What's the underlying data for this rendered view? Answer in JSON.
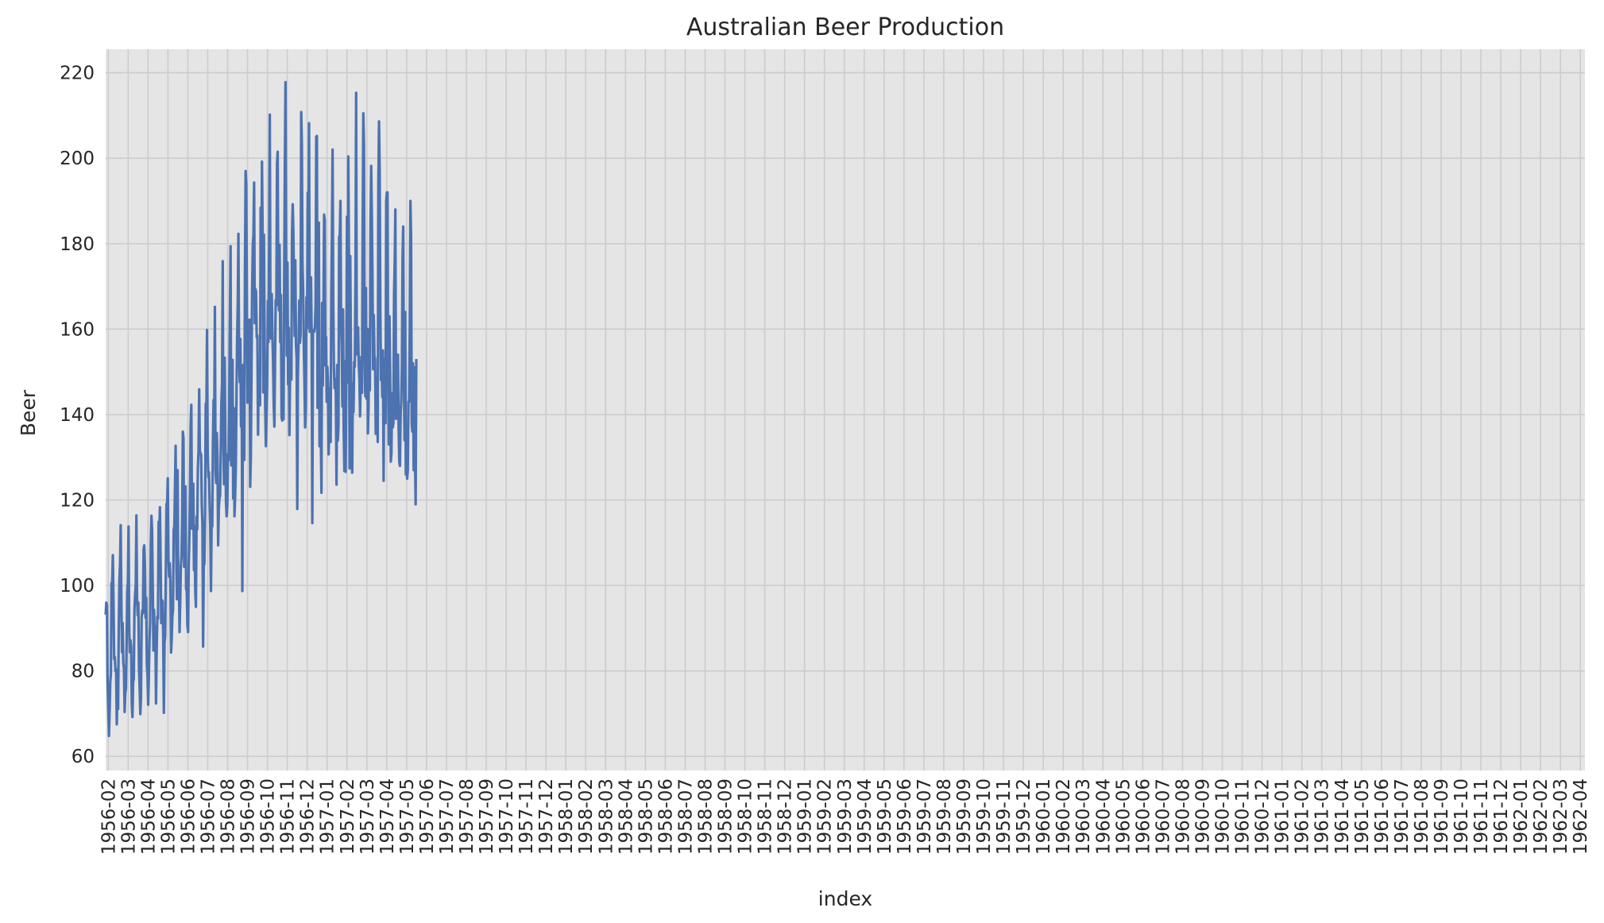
{
  "chart_data": {
    "type": "line",
    "title": "Australian Beer Production",
    "xlabel": "index",
    "ylabel": "Beer",
    "grid": true,
    "legend": "none",
    "colors": {
      "background": "#e5e5e5",
      "grid": "#cccccc",
      "series": "#4c72b0",
      "text": "#262626"
    },
    "ylim": [
      56.7,
      225.5
    ],
    "yticks": [
      60,
      80,
      100,
      120,
      140,
      160,
      180,
      200,
      220
    ],
    "xlim": [
      "1956-01-28",
      "1962-04-08"
    ],
    "xticks": [
      "1956-02",
      "1956-03",
      "1956-04",
      "1956-05",
      "1956-06",
      "1956-07",
      "1956-08",
      "1956-09",
      "1956-10",
      "1956-11",
      "1956-12",
      "1957-01",
      "1957-02",
      "1957-03",
      "1957-04",
      "1957-05",
      "1957-06",
      "1957-07",
      "1957-08",
      "1957-09",
      "1957-10",
      "1957-11",
      "1957-12",
      "1958-01",
      "1958-02",
      "1958-03",
      "1958-04",
      "1958-05",
      "1958-06",
      "1958-07",
      "1958-08",
      "1958-09",
      "1958-10",
      "1958-11",
      "1958-12",
      "1959-01",
      "1959-02",
      "1959-03",
      "1959-04",
      "1959-05",
      "1959-06",
      "1959-07",
      "1959-08",
      "1959-09",
      "1959-10",
      "1959-11",
      "1959-12",
      "1960-01",
      "1960-02",
      "1960-03",
      "1960-04",
      "1960-05",
      "1960-06",
      "1960-07",
      "1960-08",
      "1960-09",
      "1960-10",
      "1960-11",
      "1960-12",
      "1961-01",
      "1961-02",
      "1961-03",
      "1961-04",
      "1961-05",
      "1961-06",
      "1961-07",
      "1961-08",
      "1961-09",
      "1961-10",
      "1961-11",
      "1961-12",
      "1962-01",
      "1962-02",
      "1962-03",
      "1962-04"
    ],
    "x_start": "1956-01-28",
    "series": [
      {
        "values": [
          93.2,
          96.0,
          95.2,
          77.1,
          70.9,
          64.8,
          70.1,
          77.3,
          79.5,
          100.6,
          100.7,
          107.1,
          95.9,
          82.8,
          83.3,
          80.0,
          80.4,
          67.5,
          75.7,
          71.1,
          89.3,
          101.1,
          105.2,
          114.1,
          96.3,
          84.4,
          91.2,
          81.9,
          80.5,
          70.4,
          74.8,
          75.9,
          86.3,
          98.7,
          100.9,
          113.8,
          89.8,
          84.4,
          87.2,
          85.6,
          72.0,
          69.2,
          77.5,
          78.1,
          94.3,
          97.7,
          100.2,
          116.4,
          97.1,
          93.0,
          96.0,
          80.5,
          76.1,
          69.9,
          73.6,
          92.6,
          94.2,
          93.5,
          108.5,
          109.4,
          105.1,
          92.5,
          97.1,
          81.4,
          79.1,
          72.1,
          78.7,
          87.1,
          91.4,
          109.9,
          116.3,
          113.0,
          100.0,
          84.8,
          94.3,
          87.1,
          90.3,
          72.4,
          84.9,
          92.7,
          92.2,
          114.9,
          112.5,
          118.3,
          106.0,
          91.2,
          96.6,
          96.3,
          88.2,
          70.2,
          86.5,
          88.2,
          102.8,
          119.1,
          119.2,
          125.1,
          106.1,
          102.1,
          105.2,
          101.0,
          84.3,
          87.5,
          92.7,
          94.4,
          113.0,
          113.9,
          122.9,
          132.7,
          106.9,
          96.8,
          127.0,
          98.6,
          100.9,
          89.1,
          96.0,
          104.6,
          106.9,
          115.6,
          136.0,
          134.5,
          104.4,
          106.2,
          123.2,
          99.1,
          98.8,
          90.7,
          89.1,
          104.6,
          111.4,
          121.4,
          138.0,
          142.3,
          113.3,
          118.3,
          123.8,
          103.6,
          113.9,
          98.6,
          95.0,
          116.1,
          113.1,
          127.5,
          131.4,
          145.9,
          131.5,
          131.0,
          130.5,
          118.9,
          114.3,
          85.7,
          104.6,
          105.1,
          117.3,
          142.5,
          140.0,
          159.8,
          131.2,
          125.4,
          126.5,
          119.4,
          113.5,
          98.7,
          114.5,
          113.8,
          133.1,
          143.4,
          137.3,
          165.2,
          126.9,
          124.0,
          135.7,
          130.0,
          109.4,
          117.8,
          120.3,
          121.0,
          132.3,
          142.9,
          147.4,
          175.9,
          132.6,
          123.7,
          153.3,
          134.0,
          119.6,
          116.2,
          118.6,
          130.7,
          129.3,
          144.4,
          163.2,
          179.4,
          128.1,
          138.4,
          152.8,
          120.4,
          141.5,
          116.2,
          121.1,
          127.5,
          143.4,
          157.6,
          166.1,
          182.3,
          153.1,
          147.6,
          157.7,
          137.2,
          151.5,
          98.7,
          145.8,
          151.7,
          129.4,
          174.1,
          197.0,
          193.9,
          164.1,
          142.8,
          157.9,
          159.2,
          162.2,
          123.1,
          130.0,
          150.1,
          169.4,
          179.7,
          182.1,
          194.3,
          161.4,
          169.4,
          168.8,
          158.1,
          158.5,
          135.3,
          149.3,
          143.4,
          142.2,
          188.4,
          166.2,
          199.2,
          182.7,
          145.2,
          182.1,
          158.7,
          141.6,
          132.6,
          139.6,
          147.0,
          166.6,
          157.0,
          180.4,
          210.2,
          159.8,
          157.8,
          168.2,
          158.4,
          152.0,
          142.2,
          137.2,
          152.6,
          166.8,
          165.6,
          198.6,
          201.5,
          170.7,
          164.4,
          179.7,
          157.0,
          168.0,
          139.3,
          138.6,
          153.4,
          138.9,
          172.1,
          198.4,
          217.8,
          173.7,
          153.8,
          175.6,
          147.1,
          160.3,
          135.2,
          148.8,
          151.0,
          148.2,
          182.2,
          189.2,
          183.1,
          170.0,
          158.4,
          176.1,
          156.2,
          153.2,
          117.9,
          149.8,
          156.6,
          166.7,
          156.8,
          158.6,
          210.8,
          203.6,
          175.2,
          168.7,
          155.9,
          147.3,
          137.0,
          141.1,
          167.4,
          160.2,
          191.9,
          174.4,
          208.2,
          159.4,
          161.1,
          172.1,
          158.4,
          114.6,
          159.6,
          159.7,
          159.4,
          160.7,
          165.5,
          205.0,
          205.2,
          141.6,
          148.1,
          184.9,
          132.6,
          137.3,
          135.5,
          121.7,
          166.1,
          146.8,
          162.8,
          186.8,
          185.5,
          151.5,
          158.1,
          143.0,
          151.2,
          147.6,
          130.7,
          137.5,
          146.1,
          133.6,
          167.9,
          181.9,
          202.0,
          166.5,
          151.3,
          146.2,
          148.3,
          144.7,
          123.6,
          151.6,
          133.9,
          137.4,
          181.6,
          182.0,
          190.0,
          161.2,
          155.5,
          141.9,
          164.6,
          136.2,
          126.8,
          152.5,
          126.6,
          150.1,
          186.3,
          147.5,
          200.4,
          177.2,
          127.4,
          177.1,
          154.4,
          135.2,
          126.4,
          147.3,
          140.6,
          152.3,
          151.2,
          172.2,
          215.3,
          154.1,
          159.3,
          160.4,
          151.9,
          148.4,
          139.6,
          148.2,
          153.5,
          145.1,
          183.7,
          210.5,
          203.3,
          153.3,
          144.3,
          169.6,
          143.7,
          160.1,
          135.6,
          141.8,
          159.9,
          145.7,
          183.5,
          198.2,
          186.8,
          172.0,
          150.6,
          163.3,
          153.7,
          152.9,
          135.5,
          148.5,
          148.4,
          133.6,
          194.1,
          208.6,
          197.3,
          164.0,
          148.1,
          152.0,
          144.1,
          155.0,
          124.5,
          153.0,
          146.0,
          138.0,
          190.0,
          192.0,
          192.0,
          147.0,
          133.0,
          163.0,
          150.0,
          129.0,
          131.0,
          145.0,
          137.0,
          138.0,
          168.0,
          176.0,
          188.0,
          139.0,
          143.0,
          150.0,
          154.0,
          137.0,
          129.0,
          128.0,
          140.0,
          143.0,
          151.0,
          177.0,
          184.0,
          151.0,
          134.0,
          164.0,
          126.0,
          131.0,
          125.0,
          127.0,
          143.0,
          143.0,
          160.0,
          190.0,
          182.0,
          138.0,
          136.0,
          152.0,
          127.0,
          151.0,
          130.0,
          119.0,
          153.0
        ]
      }
    ]
  }
}
